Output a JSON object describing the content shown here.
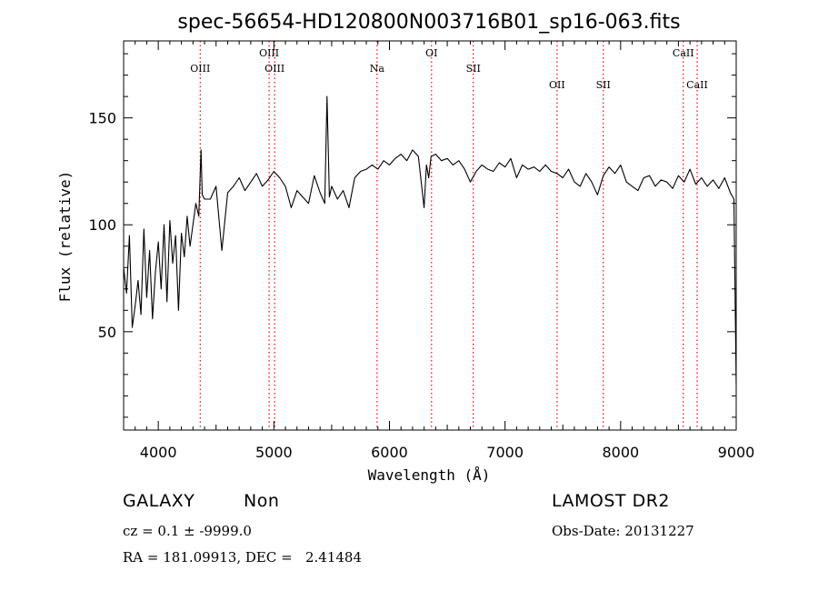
{
  "chart_data": {
    "type": "line",
    "title": "spec-56654-HD120800N003716B01_sp16-063.fits",
    "xlabel": "Wavelength (Å)",
    "ylabel": "Flux (relative)",
    "xlim": [
      3700,
      9000
    ],
    "ylim": [
      4,
      186
    ],
    "xticks": [
      4000,
      5000,
      6000,
      7000,
      8000,
      9000
    ],
    "yticks": [
      50,
      100,
      150
    ],
    "grid": false,
    "series": [
      {
        "x": [
          3700,
          3725,
          3750,
          3775,
          3800,
          3825,
          3850,
          3875,
          3900,
          3925,
          3950,
          3975,
          4000,
          4025,
          4050,
          4075,
          4100,
          4125,
          4150,
          4175,
          4200,
          4225,
          4250,
          4275,
          4300,
          4325,
          4350,
          4370,
          4380,
          4400,
          4450,
          4500,
          4550,
          4600,
          4650,
          4700,
          4750,
          4800,
          4850,
          4900,
          4950,
          5000,
          5050,
          5100,
          5150,
          5200,
          5250,
          5300,
          5350,
          5400,
          5440,
          5460,
          5480,
          5500,
          5550,
          5600,
          5650,
          5700,
          5750,
          5800,
          5850,
          5900,
          5950,
          6000,
          6050,
          6100,
          6150,
          6200,
          6250,
          6300,
          6320,
          6340,
          6360,
          6400,
          6450,
          6500,
          6550,
          6600,
          6650,
          6700,
          6750,
          6800,
          6850,
          6900,
          6950,
          7000,
          7050,
          7100,
          7150,
          7200,
          7250,
          7300,
          7350,
          7400,
          7450,
          7500,
          7550,
          7600,
          7650,
          7700,
          7750,
          7800,
          7850,
          7900,
          7950,
          8000,
          8050,
          8100,
          8150,
          8200,
          8250,
          8300,
          8350,
          8400,
          8450,
          8500,
          8550,
          8600,
          8650,
          8700,
          8750,
          8800,
          8850,
          8900,
          8950,
          8980,
          9000
        ],
        "y": [
          80,
          68,
          95,
          52,
          62,
          74,
          58,
          98,
          66,
          88,
          56,
          78,
          92,
          70,
          100,
          64,
          102,
          82,
          95,
          60,
          96,
          85,
          104,
          90,
          100,
          110,
          104,
          135,
          114,
          112,
          112,
          118,
          88,
          115,
          118,
          122,
          116,
          120,
          124,
          118,
          121,
          125,
          122,
          118,
          108,
          116,
          113,
          110,
          123,
          115,
          110,
          160,
          113,
          118,
          112,
          116,
          108,
          122,
          125,
          126,
          128,
          126,
          130,
          128,
          131,
          133,
          130,
          135,
          132,
          108,
          128,
          122,
          132,
          133,
          130,
          131,
          128,
          130,
          126,
          120,
          125,
          128,
          126,
          125,
          129,
          127,
          131,
          122,
          128,
          126,
          127,
          125,
          128,
          125,
          124,
          122,
          126,
          120,
          118,
          124,
          120,
          114,
          123,
          127,
          124,
          128,
          120,
          118,
          116,
          122,
          123,
          118,
          121,
          120,
          117,
          123,
          120,
          126,
          119,
          122,
          118,
          121,
          117,
          122,
          115,
          112,
          25
        ]
      }
    ],
    "annotations": [
      {
        "label": "OIII",
        "x": 4363,
        "row": "low"
      },
      {
        "label": "OIII",
        "x": 4959,
        "row": "high"
      },
      {
        "label": "OIII",
        "x": 5007,
        "row": "low"
      },
      {
        "label": "Na",
        "x": 5893,
        "row": "low"
      },
      {
        "label": "OI",
        "x": 6364,
        "row": "high"
      },
      {
        "label": "SII",
        "x": 6725,
        "row": "low"
      },
      {
        "label": "OII",
        "x": 7450,
        "row": "lower"
      },
      {
        "label": "SII",
        "x": 7850,
        "row": "lower"
      },
      {
        "label": "CaII",
        "x": 8542,
        "row": "high"
      },
      {
        "label": "CaII",
        "x": 8662,
        "row": "lower"
      }
    ]
  },
  "info": {
    "object_class": "GALAXY",
    "subclass": "Non",
    "cz_line": "cz = 0.1 ± -9999.0",
    "coords_line": "RA = 181.09913, DEC =   2.41484",
    "survey": "LAMOST DR2",
    "obs_date_line": "Obs-Date: 20131227"
  },
  "colors": {
    "line": "#000000",
    "marker_line": "#ff0000",
    "background": "#ffffff"
  }
}
